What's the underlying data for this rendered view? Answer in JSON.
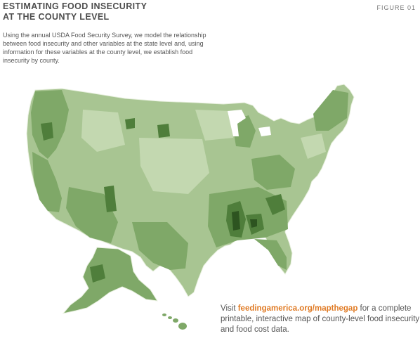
{
  "header": {
    "title_line1": "ESTIMATING FOOD INSECURITY",
    "title_line2": "AT THE COUNTY LEVEL",
    "figure_label": "FIGURE 01"
  },
  "intro": {
    "text": "Using the annual USDA Food Security Survey, we model the relationship between food insecurity and other variables at the state level and, using information for these variables at the county level, we establish food insecurity by county."
  },
  "map": {
    "colors": {
      "lightest": "#b9d0a4",
      "light": "#93b47a",
      "medium": "#6e9b57",
      "dark": "#4b7a37",
      "darkest": "#2d5420",
      "border": "#e8f0df"
    }
  },
  "callout": {
    "prefix": "Visit ",
    "link": "feedingamerica.org/mapthegap",
    "suffix": " for a complete printable, interactive map of county-level food insecurity and food cost data."
  }
}
